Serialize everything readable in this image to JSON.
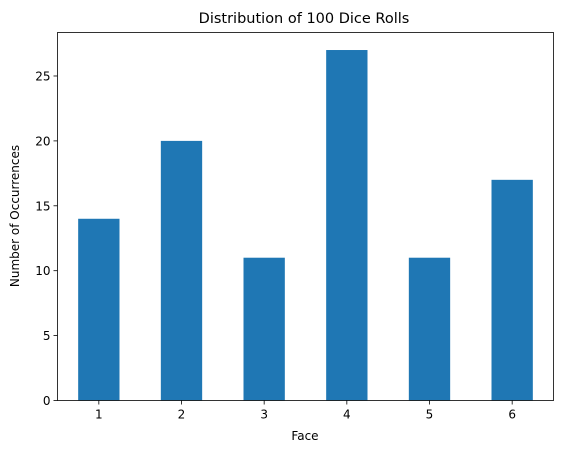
{
  "chart_data": {
    "type": "bar",
    "title": "Distribution of 100 Dice Rolls",
    "xlabel": "Face",
    "ylabel": "Number of Occurrences",
    "categories": [
      "1",
      "2",
      "3",
      "4",
      "5",
      "6"
    ],
    "values": [
      14,
      20,
      11,
      27,
      11,
      17
    ],
    "ylim": [
      0,
      28.35
    ],
    "yticks": [
      0,
      5,
      10,
      15,
      20,
      25
    ],
    "bar_color": "#1f77b4",
    "grid": false,
    "legend": "none"
  }
}
